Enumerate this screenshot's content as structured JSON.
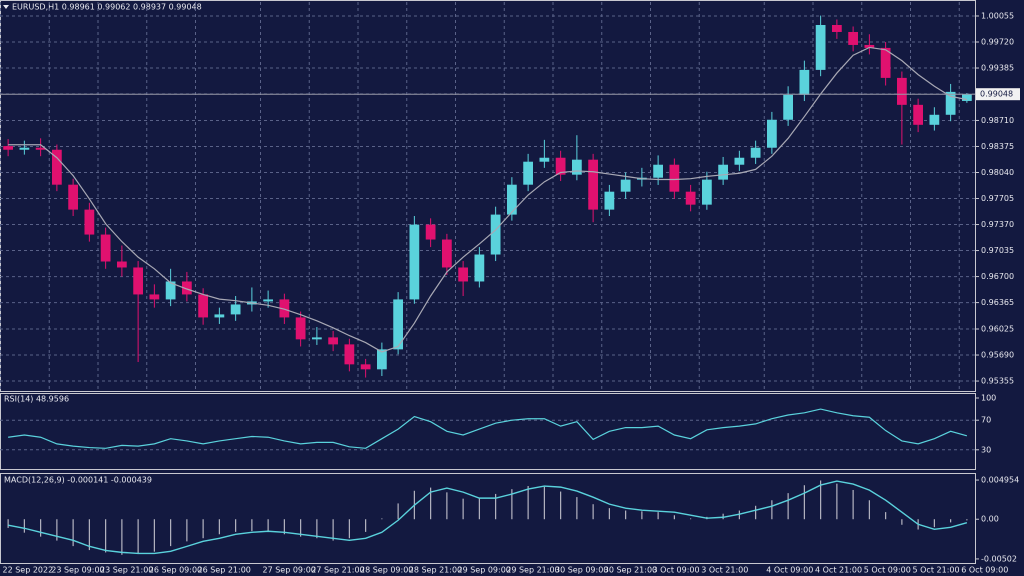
{
  "chart_data": [
    {
      "type": "candlestick",
      "title": "EURUSD,H1  0.98961 0.99062 0.98937 0.99048",
      "categories": [
        "22 Sep 2022",
        null,
        null,
        "23 Sep 09:00",
        null,
        null,
        "23 Sep 21:00",
        null,
        null,
        "26 Sep 09:00",
        null,
        null,
        "26 Sep 21:00",
        null,
        null,
        null,
        "27 Sep 09:00",
        null,
        null,
        "27 Sep 21:00",
        null,
        null,
        "28 Sep 09:00",
        null,
        null,
        "28 Sep 21:00",
        null,
        null,
        "29 Sep 09:00",
        null,
        null,
        "29 Sep 21:00",
        null,
        null,
        "30 Sep 09:00",
        null,
        null,
        "30 Sep 21:00",
        null,
        null,
        "3 Oct 09:00",
        null,
        null,
        "3 Oct 21:00",
        null,
        null,
        null,
        "4 Oct 09:00",
        null,
        null,
        "4 Oct 21:00",
        null,
        null,
        "5 Oct 09:00",
        null,
        null,
        "5 Oct 21:00",
        null,
        null,
        "6 Oct 09:00"
      ],
      "open": [
        0.9838,
        0.98333,
        0.98359,
        0.98333,
        0.97883,
        0.97562,
        0.97241,
        0.96894,
        0.96817,
        0.9647,
        0.96406,
        0.96637,
        0.9647,
        0.96174,
        0.96213,
        0.96341,
        0.9638,
        0.96406,
        0.96174,
        0.95892,
        0.95917,
        0.95827,
        0.9557,
        0.95506,
        0.95763,
        0.96406,
        0.97369,
        0.97177,
        0.96817,
        0.96637,
        0.96984,
        0.97498,
        0.97883,
        0.98179,
        0.9823,
        0.98012,
        0.98205,
        0.97562,
        0.97793,
        0.97948,
        0.97973,
        0.9814,
        0.97793,
        0.97626,
        0.97948,
        0.9814,
        0.9823,
        0.98359,
        0.98719,
        0.9904,
        0.99361,
        0.99939,
        0.99849,
        0.99682,
        0.99644,
        0.99258,
        0.98911,
        0.98654,
        0.98783,
        0.98961
      ],
      "high": [
        0.9847,
        0.9845,
        0.9848,
        0.984,
        0.9796,
        0.9765,
        0.9733,
        0.971,
        0.969,
        0.966,
        0.968,
        0.9676,
        0.9655,
        0.963,
        0.9645,
        0.9656,
        0.9652,
        0.9648,
        0.9625,
        0.9605,
        0.96,
        0.959,
        0.9564,
        0.9585,
        0.965,
        0.9748,
        0.9745,
        0.9725,
        0.969,
        0.9708,
        0.976,
        0.9798,
        0.9828,
        0.9846,
        0.9832,
        0.9852,
        0.9828,
        0.9788,
        0.9804,
        0.981,
        0.9826,
        0.9822,
        0.9788,
        0.9805,
        0.9824,
        0.9832,
        0.9845,
        0.9882,
        0.9915,
        0.9948,
        1.0006,
        1.0001,
        0.9992,
        0.9982,
        0.9972,
        0.9934,
        0.9899,
        0.9888,
        0.9918,
        0.99062
      ],
      "low": [
        0.9825,
        0.9827,
        0.9825,
        0.978,
        0.9748,
        0.9715,
        0.968,
        0.967,
        0.956,
        0.963,
        0.9632,
        0.9638,
        0.9608,
        0.9609,
        0.9613,
        0.9625,
        0.963,
        0.9609,
        0.958,
        0.9582,
        0.9574,
        0.9548,
        0.954,
        0.9542,
        0.957,
        0.9635,
        0.9708,
        0.9672,
        0.9645,
        0.9656,
        0.969,
        0.9742,
        0.978,
        0.981,
        0.9793,
        0.9794,
        0.974,
        0.9748,
        0.977,
        0.9786,
        0.9788,
        0.977,
        0.9754,
        0.9756,
        0.9788,
        0.9806,
        0.9815,
        0.9828,
        0.9864,
        0.9896,
        0.9928,
        0.9976,
        0.996,
        0.9956,
        0.9916,
        0.984,
        0.9856,
        0.9858,
        0.987,
        0.98937
      ],
      "close": [
        0.98333,
        0.98359,
        0.98333,
        0.97883,
        0.97562,
        0.97241,
        0.96894,
        0.96817,
        0.9647,
        0.96406,
        0.96637,
        0.9647,
        0.96174,
        0.96213,
        0.96341,
        0.9638,
        0.96406,
        0.96174,
        0.95892,
        0.95917,
        0.95827,
        0.9557,
        0.95506,
        0.95763,
        0.96406,
        0.97369,
        0.97177,
        0.96817,
        0.96637,
        0.96984,
        0.97498,
        0.97883,
        0.98179,
        0.9823,
        0.98012,
        0.98205,
        0.97562,
        0.97793,
        0.97948,
        0.97973,
        0.9814,
        0.97793,
        0.97626,
        0.97948,
        0.9814,
        0.9823,
        0.98359,
        0.98719,
        0.9904,
        0.99361,
        0.99939,
        0.99849,
        0.99682,
        0.99644,
        0.99258,
        0.98911,
        0.98654,
        0.98783,
        0.99078,
        0.99048
      ],
      "up_color": "#5ad2dc",
      "down_color": "#e0116f",
      "ma": {
        "color": "#a8a8b4",
        "values": [
          0.98397,
          0.98397,
          0.98397,
          0.9823,
          0.98,
          0.977,
          0.9738,
          0.9715,
          0.9695,
          0.968,
          0.9662,
          0.9654,
          0.9647,
          0.9641,
          0.9639,
          0.9636,
          0.9633,
          0.9628,
          0.9621,
          0.9613,
          0.9604,
          0.9594,
          0.9585,
          0.9573,
          0.958,
          0.961,
          0.9645,
          0.9676,
          0.9695,
          0.9712,
          0.973,
          0.9753,
          0.9775,
          0.9792,
          0.9804,
          0.9806,
          0.9805,
          0.9802,
          0.9799,
          0.9796,
          0.9795,
          0.9795,
          0.9796,
          0.9799,
          0.9801,
          0.9803,
          0.9808,
          0.9825,
          0.9848,
          0.9876,
          0.9905,
          0.9932,
          0.9955,
          0.9965,
          0.9962,
          0.9948,
          0.993,
          0.9915,
          0.9902,
          0.9898
        ]
      },
      "ylim": [
        0.95214,
        1.00235
      ],
      "yticks": [
        1.00055,
        {
          "value": 0.9972,
          "label": "0.99720"
        },
        0.99385,
        {
          "value": 0.9905,
          "label": "0.99050"
        },
        {
          "value": 0.9871,
          "label": "0.98710"
        },
        0.98375,
        {
          "value": 0.9804,
          "label": "0.98040"
        },
        0.97705,
        {
          "value": 0.9737,
          "label": "0.97370"
        },
        0.97035,
        {
          "value": 0.967,
          "label": "0.96700"
        },
        0.96365,
        0.96025,
        {
          "value": 0.9569,
          "label": "0.95690"
        },
        0.95355
      ],
      "grid": true
    },
    {
      "type": "line",
      "title": "RSI(14) 48.9596",
      "color": "#5ad2dc",
      "values": [
        47,
        50,
        47,
        38,
        35,
        33,
        32,
        36,
        35,
        38,
        45,
        42,
        38,
        42,
        45,
        48,
        47,
        42,
        38,
        40,
        40,
        34,
        32,
        45,
        58,
        75,
        68,
        55,
        50,
        58,
        66,
        70,
        72,
        72,
        62,
        68,
        44,
        55,
        60,
        60,
        62,
        50,
        45,
        57,
        60,
        62,
        65,
        72,
        77,
        80,
        85,
        80,
        76,
        74,
        56,
        42,
        38,
        45,
        55,
        48.9596
      ],
      "ylim": [
        0,
        100
      ],
      "yticks": [
        100,
        70,
        30
      ],
      "levels": [
        70,
        30
      ]
    },
    {
      "type": "macd",
      "title": "MACD(12,26,9) -0.000141 -0.000439",
      "histogram_color": "#b4b4c0",
      "signal_color": "#5ad2dc",
      "histogram": [
        -0.0011,
        -0.0017,
        -0.0022,
        -0.0027,
        -0.0034,
        -0.0039,
        -0.0042,
        -0.0045,
        -0.0044,
        -0.0041,
        -0.0034,
        -0.0028,
        -0.0024,
        -0.0019,
        -0.0016,
        -0.0015,
        -0.0016,
        -0.0019,
        -0.0022,
        -0.0024,
        -0.0027,
        -0.0024,
        -0.0016,
        0.0001,
        0.002,
        0.0036,
        0.004,
        0.0034,
        0.0026,
        0.0027,
        0.0032,
        0.0038,
        0.0042,
        0.0041,
        0.0035,
        0.0028,
        0.0019,
        0.0014,
        0.0011,
        0.001,
        0.0009,
        0.0005,
        0.0001,
        0.0003,
        0.0007,
        0.0011,
        0.0017,
        0.0024,
        0.0033,
        0.0043,
        0.0049,
        0.0045,
        0.0037,
        0.0024,
        0.0009,
        -0.0007,
        -0.0013,
        -0.001,
        -0.0004,
        -0.000141
      ],
      "signal": [
        -0.00076,
        -0.00114,
        -0.00165,
        -0.00216,
        -0.00267,
        -0.00343,
        -0.00394,
        -0.00419,
        -0.00432,
        -0.00432,
        -0.00406,
        -0.00343,
        -0.00279,
        -0.00241,
        -0.00191,
        -0.00165,
        -0.00152,
        -0.00165,
        -0.00191,
        -0.00216,
        -0.00241,
        -0.00267,
        -0.00241,
        -0.00165,
        -0.00013,
        0.00178,
        0.00343,
        0.00394,
        0.00343,
        0.00267,
        0.00267,
        0.00318,
        0.00381,
        0.00419,
        0.00406,
        0.00356,
        0.00279,
        0.00191,
        0.0014,
        0.00114,
        0.00102,
        0.00089,
        0.00051,
        0.00013,
        0.00025,
        0.00064,
        0.00114,
        0.00165,
        0.00241,
        0.0033,
        0.00432,
        0.00483,
        0.00445,
        0.00368,
        0.00241,
        0.00089,
        -0.00064,
        -0.00127,
        -0.00102,
        -0.000439
      ],
      "ylim": [
        -0.00642,
        0.00572
      ],
      "yticks": [
        0.004954,
        {
          "value": 0,
          "label": "0.00"
        },
        -0.00502
      ]
    }
  ]
}
